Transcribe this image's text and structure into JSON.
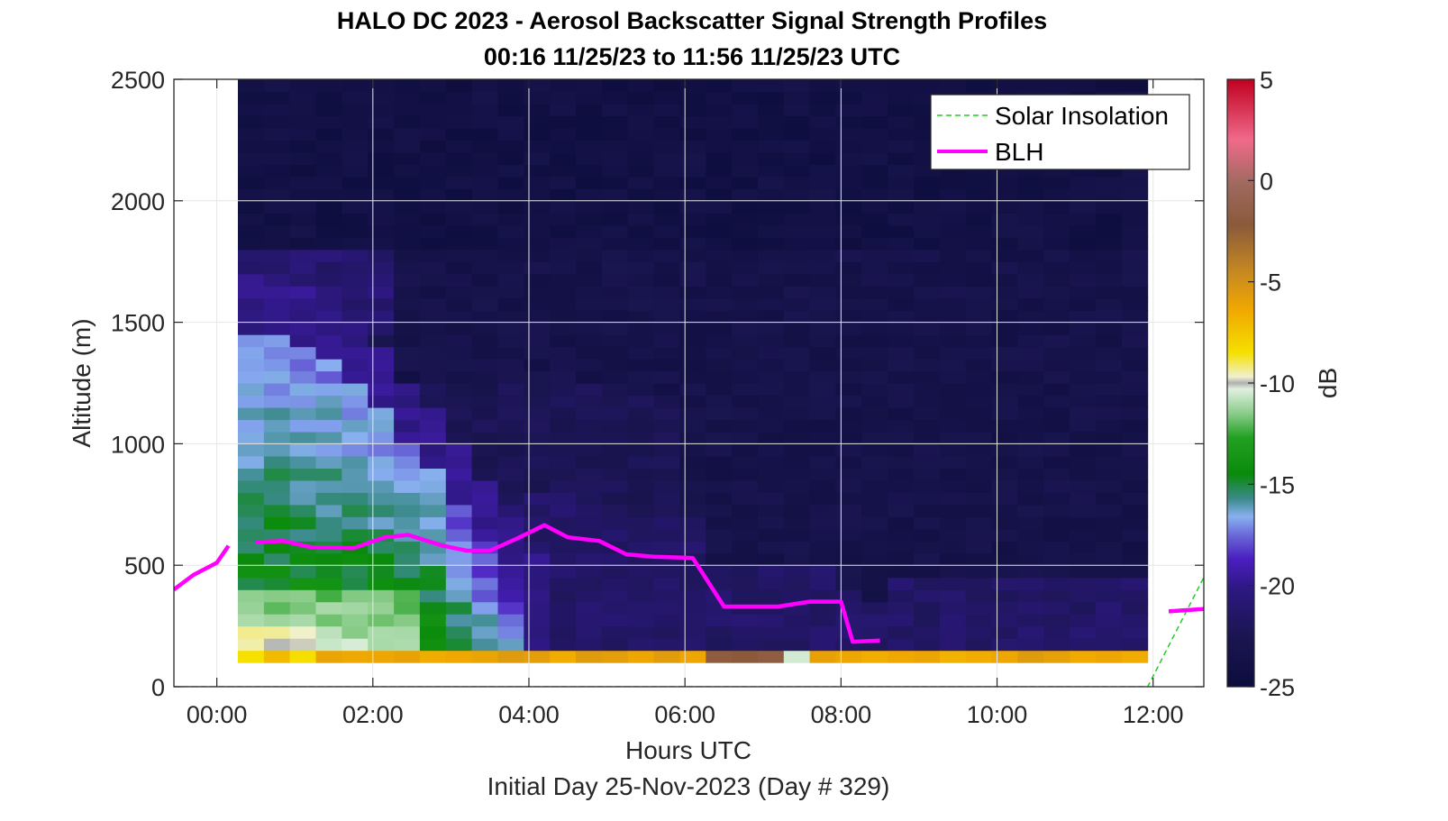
{
  "chart_data": {
    "type": "heatmap",
    "title": "HALO DC 2023 - Aerosol Backscatter Signal Strength Profiles",
    "subtitle": "00:16 11/25/23 to 11:56 11/25/23  UTC",
    "xlabel": "Hours UTC",
    "xlabel2": "Initial Day 25-Nov-2023 (Day # 329)",
    "ylabel": "Altitude (m)",
    "colorbar_label": "dB",
    "xlim": [
      -0.55,
      12.65
    ],
    "ylim": [
      0,
      2500
    ],
    "xticks": [
      0,
      2,
      4,
      6,
      8,
      10,
      12
    ],
    "xtick_labels": [
      "00:00",
      "02:00",
      "04:00",
      "06:00",
      "08:00",
      "10:00",
      "12:00"
    ],
    "yticks": [
      0,
      500,
      1000,
      1500,
      2000,
      2500
    ],
    "ytick_labels": [
      "0",
      "500",
      "1000",
      "1500",
      "2000",
      "2500"
    ],
    "clim": [
      -25,
      5
    ],
    "cticks": [
      5,
      0,
      -5,
      -10,
      -15,
      -20,
      -25
    ],
    "ctick_labels": [
      "5",
      "0",
      "-5",
      "-10",
      "-15",
      "-20",
      "-25"
    ],
    "grid": true,
    "legend_position": "top-right",
    "heatmap_time_range": [
      0.27,
      11.93
    ],
    "heatmap_alt_range": [
      100,
      2500
    ],
    "series": [
      {
        "name": "Solar Insolation",
        "style": "dashed",
        "color": "#22cc22",
        "x": [
          -0.55,
          11.93,
          12.65
        ],
        "y": [
          0,
          0,
          450
        ]
      },
      {
        "name": "BLH",
        "style": "solid",
        "color": "#ff00ff",
        "x": [
          -0.55,
          -0.3,
          0.0,
          0.15,
          null,
          0.5,
          0.85,
          1.2,
          1.75,
          2.15,
          2.45,
          2.9,
          3.2,
          3.5,
          3.85,
          4.2,
          4.5,
          4.9,
          5.25,
          5.6,
          6.1,
          6.5,
          7.2,
          7.6,
          8.0,
          8.15,
          8.5,
          null,
          12.2,
          12.65
        ],
        "y": [
          400,
          460,
          510,
          580,
          null,
          595,
          600,
          575,
          570,
          615,
          625,
          580,
          560,
          560,
          610,
          665,
          615,
          600,
          545,
          535,
          530,
          330,
          330,
          350,
          350,
          185,
          190,
          null,
          310,
          320
        ]
      }
    ]
  },
  "legend": {
    "solar": "Solar Insolation",
    "blh": "BLH"
  }
}
